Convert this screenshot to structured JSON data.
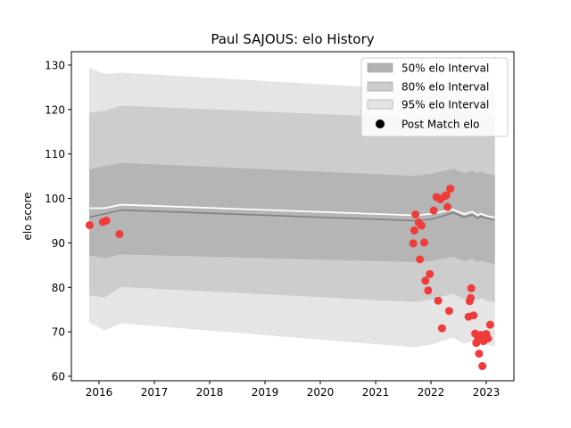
{
  "chart_data": {
    "type": "line",
    "title": "Paul SAJOUS: elo History",
    "xlabel": "",
    "ylabel": "elo score",
    "xlim": [
      2015.5,
      2023.5
    ],
    "ylim": [
      59,
      133
    ],
    "xticks": [
      2016,
      2017,
      2018,
      2019,
      2020,
      2021,
      2022,
      2023
    ],
    "xtick_labels": [
      "2016",
      "2017",
      "2018",
      "2019",
      "2020",
      "2021",
      "2022",
      "2023"
    ],
    "yticks": [
      60,
      70,
      80,
      90,
      100,
      110,
      120,
      130
    ],
    "ytick_labels": [
      "60",
      "70",
      "80",
      "90",
      "100",
      "110",
      "120",
      "130"
    ],
    "grid": false,
    "legend_position": "top-right",
    "legend": [
      {
        "label": "50% elo Interval",
        "key": "band50"
      },
      {
        "label": "80% elo Interval",
        "key": "band80"
      },
      {
        "label": "95% elo Interval",
        "key": "band95"
      },
      {
        "label": "Post Match elo",
        "key": "points"
      }
    ],
    "colors": {
      "band50": "#b3b3b3",
      "band80": "#cbcbcb",
      "band95": "#e4e4e4",
      "mean_line": "#808080",
      "prior_line": "#ffffff",
      "points": "#f03b3b"
    },
    "mean_line": {
      "x": [
        2015.83,
        2016.1,
        2016.4,
        2021.7,
        2022.0,
        2022.2,
        2022.4,
        2022.6,
        2022.75,
        2022.85,
        2022.9,
        2023.0,
        2023.15
      ],
      "y": [
        95.8,
        96.5,
        97.4,
        95.0,
        95.3,
        96.0,
        96.8,
        95.8,
        96.3,
        95.5,
        96.0,
        95.6,
        95.2
      ]
    },
    "prior_line": {
      "x": [
        2015.83,
        2016.1,
        2016.4,
        2021.7,
        2022.0,
        2022.2,
        2022.4,
        2022.6,
        2022.75,
        2022.85,
        2022.9,
        2023.0,
        2023.15
      ],
      "y": [
        97.8,
        97.8,
        98.6,
        96.2,
        96.5,
        97.0,
        97.5,
        96.5,
        97.0,
        96.2,
        96.6,
        96.1,
        95.7
      ]
    },
    "bands": {
      "x": [
        2015.83,
        2016.1,
        2016.4,
        2021.7,
        2022.0,
        2022.2,
        2022.4,
        2022.6,
        2022.75,
        2022.85,
        2022.9,
        2023.0,
        2023.15
      ],
      "band50": {
        "lower": [
          87.2,
          86.7,
          87.5,
          85.8,
          86.0,
          86.5,
          87.0,
          86.0,
          86.5,
          85.8,
          86.2,
          85.7,
          85.3
        ],
        "upper": [
          106.5,
          107.2,
          107.9,
          105.0,
          105.4,
          106.0,
          106.6,
          105.6,
          106.2,
          105.4,
          106.0,
          105.5,
          105.1
        ]
      },
      "band80": {
        "lower": [
          78.3,
          77.8,
          80.2,
          76.8,
          77.3,
          78.0,
          78.7,
          77.4,
          78.0,
          77.2,
          77.8,
          77.1,
          76.8
        ],
        "upper": [
          119.2,
          119.6,
          120.8,
          118.0,
          118.6,
          119.2,
          119.9,
          118.8,
          119.4,
          118.6,
          119.1,
          118.6,
          118.2
        ]
      },
      "band95": {
        "lower": [
          72.2,
          70.4,
          72.0,
          66.6,
          67.2,
          68.0,
          68.8,
          67.4,
          68.0,
          67.2,
          67.8,
          67.2,
          66.8
        ],
        "upper": [
          129.3,
          127.9,
          128.2,
          124.4,
          125.0,
          125.8,
          126.6,
          125.3,
          126.0,
          125.1,
          125.7,
          125.0,
          124.6
        ]
      }
    },
    "points": {
      "x": [
        2015.83,
        2016.07,
        2016.13,
        2016.37,
        2021.68,
        2021.7,
        2021.72,
        2021.78,
        2021.8,
        2021.83,
        2021.88,
        2021.9,
        2021.95,
        2021.98,
        2022.05,
        2022.1,
        2022.13,
        2022.17,
        2022.2,
        2022.25,
        2022.28,
        2022.3,
        2022.33,
        2022.35,
        2022.68,
        2022.7,
        2022.72,
        2022.73,
        2022.77,
        2022.8,
        2022.82,
        2022.85,
        2022.87,
        2022.9,
        2022.93,
        2022.95,
        2023.0,
        2023.03,
        2023.07
      ],
      "y": [
        94.0,
        94.7,
        95.0,
        92.0,
        89.9,
        92.8,
        96.4,
        94.6,
        86.3,
        93.9,
        90.1,
        81.5,
        79.3,
        83.0,
        97.3,
        100.3,
        77.0,
        99.8,
        70.8,
        100.5,
        100.7,
        98.1,
        74.7,
        102.2,
        73.4,
        76.9,
        77.6,
        79.8,
        73.7,
        69.6,
        67.5,
        68.2,
        65.1,
        69.3,
        62.3,
        67.9,
        69.5,
        68.5,
        71.6
      ]
    }
  }
}
